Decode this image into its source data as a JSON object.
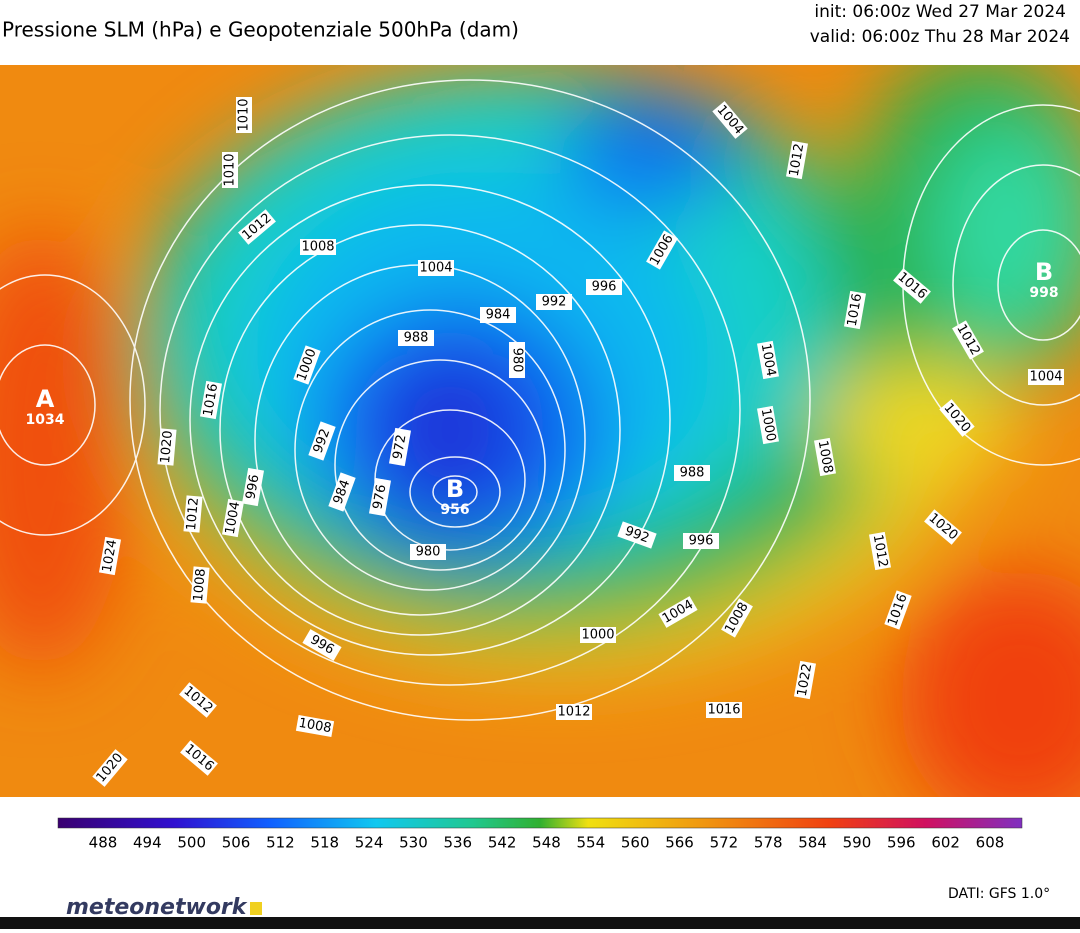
{
  "header": {
    "title": "Pressione SLM (hPa) e Geopotenziale 500hPa (dam)",
    "init": "init: 06:00z Wed 27 Mar 2024",
    "valid": "valid: 06:00z Thu 28 Mar 2024"
  },
  "centers": [
    {
      "letter": "A",
      "value": 1034
    },
    {
      "letter": "B",
      "value": 956
    },
    {
      "letter": "B",
      "value": 998
    }
  ],
  "isobar_labels": [
    1008,
    1004,
    992,
    996,
    984,
    988,
    980,
    1000,
    992,
    972,
    984,
    976,
    980,
    996,
    1004,
    1012,
    1008,
    1020,
    1016,
    1024,
    1012,
    1016,
    1020,
    996,
    1008,
    1012,
    1016,
    1000,
    1004,
    1008,
    992,
    996,
    988,
    1000,
    1004,
    1008,
    1012,
    1016,
    1020,
    1022,
    1020,
    1012,
    1016,
    1016,
    1004,
    1012,
    1004,
    1006,
    1010,
    1012,
    1010
  ],
  "colorbar_labels": [
    488,
    494,
    500,
    506,
    512,
    518,
    524,
    530,
    536,
    542,
    548,
    554,
    560,
    566,
    572,
    578,
    584,
    590,
    596,
    602,
    608
  ],
  "logo": "meteonetwork",
  "credits": "DATI: GFS 1.0°"
}
